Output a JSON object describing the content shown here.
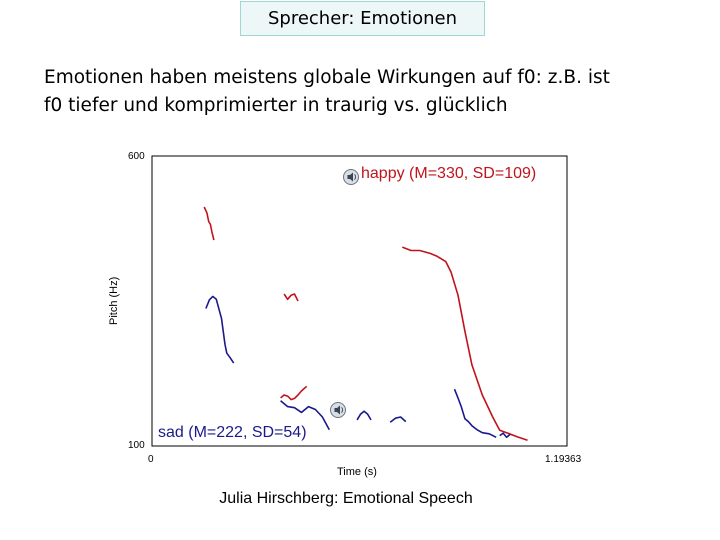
{
  "slide": {
    "title": "Sprecher: Emotionen",
    "body_lines": [
      "Emotionen haben meistens globale Wirkungen auf f0: z.B. ist",
      "f0 tiefer und komprimierter in traurig vs. glücklich"
    ],
    "footer": "Julia Hirschberg: Emotional Speech"
  },
  "figure": {
    "y_axis_label": "Pitch (Hz)",
    "x_axis_label": "Time (s)",
    "y_max_label": "600",
    "y_min_label": "100",
    "x_min_label": "0",
    "x_max_label": "1.19363",
    "happy_label": "happy (M=330, SD=109)",
    "sad_label": "sad (M=222, SD=54)",
    "happy_color": "#c0141c",
    "sad_color": "#1a1a8c",
    "speaker_icon": "speaker-icon"
  },
  "chart_data": {
    "type": "line",
    "title": "",
    "xlabel": "Time (s)",
    "ylabel": "Pitch (Hz)",
    "xlim": [
      0,
      1.19363
    ],
    "ylim": [
      100,
      600
    ],
    "grid": false,
    "legend": "inline labels",
    "series": [
      {
        "name": "happy (M=330, SD=109)",
        "color": "#c0141c",
        "segments": [
          [
            [
              0.15,
              512
            ],
            [
              0.158,
              502
            ],
            [
              0.163,
              487
            ],
            [
              0.168,
              482
            ],
            [
              0.172,
              470
            ],
            [
              0.178,
              455
            ]
          ],
          [
            [
              0.38,
              362
            ],
            [
              0.39,
              353
            ],
            [
              0.4,
              360
            ],
            [
              0.41,
              362
            ],
            [
              0.42,
              350
            ]
          ],
          [
            [
              0.37,
              183
            ],
            [
              0.38,
              188
            ],
            [
              0.39,
              186
            ],
            [
              0.4,
              180
            ],
            [
              0.41,
              182
            ],
            [
              0.42,
              188
            ],
            [
              0.43,
              195
            ],
            [
              0.445,
              203
            ]
          ],
          [
            [
              0.72,
              443
            ],
            [
              0.745,
              437
            ],
            [
              0.77,
              437
            ],
            [
              0.8,
              432
            ],
            [
              0.82,
              427
            ],
            [
              0.845,
              418
            ],
            [
              0.86,
              400
            ],
            [
              0.88,
              360
            ],
            [
              0.9,
              298
            ],
            [
              0.92,
              240
            ],
            [
              0.95,
              188
            ],
            [
              0.98,
              150
            ],
            [
              1.0,
              127
            ],
            [
              1.02,
              123
            ],
            [
              1.05,
              116
            ],
            [
              1.08,
              110
            ]
          ]
        ]
      },
      {
        "name": "sad (M=222, SD=54)",
        "color": "#1a1a8c",
        "segments": [
          [
            [
              0.155,
              337
            ],
            [
              0.165,
              352
            ],
            [
              0.175,
              358
            ],
            [
              0.185,
              353
            ],
            [
              0.2,
              320
            ],
            [
              0.21,
              275
            ],
            [
              0.215,
              260
            ],
            [
              0.225,
              252
            ],
            [
              0.235,
              243
            ]
          ],
          [
            [
              0.37,
              178
            ],
            [
              0.39,
              168
            ],
            [
              0.41,
              166
            ],
            [
              0.43,
              158
            ],
            [
              0.45,
              168
            ],
            [
              0.47,
              163
            ],
            [
              0.49,
              150
            ],
            [
              0.51,
              128
            ]
          ],
          [
            [
              0.59,
              145
            ],
            [
              0.6,
              155
            ],
            [
              0.61,
              160
            ],
            [
              0.62,
              155
            ],
            [
              0.63,
              145
            ]
          ],
          [
            [
              0.685,
              141
            ],
            [
              0.7,
              148
            ],
            [
              0.715,
              150
            ],
            [
              0.73,
              142
            ]
          ],
          [
            [
              0.87,
              198
            ],
            [
              0.88,
              183
            ],
            [
              0.89,
              167
            ],
            [
              0.9,
              147
            ],
            [
              0.91,
              142
            ],
            [
              0.92,
              135
            ],
            [
              0.935,
              128
            ],
            [
              0.95,
              123
            ],
            [
              0.97,
              121
            ],
            [
              0.99,
              115
            ]
          ],
          [
            [
              1.0,
              118
            ],
            [
              1.01,
              122
            ],
            [
              1.02,
              115
            ],
            [
              1.03,
              120
            ]
          ]
        ]
      }
    ]
  }
}
